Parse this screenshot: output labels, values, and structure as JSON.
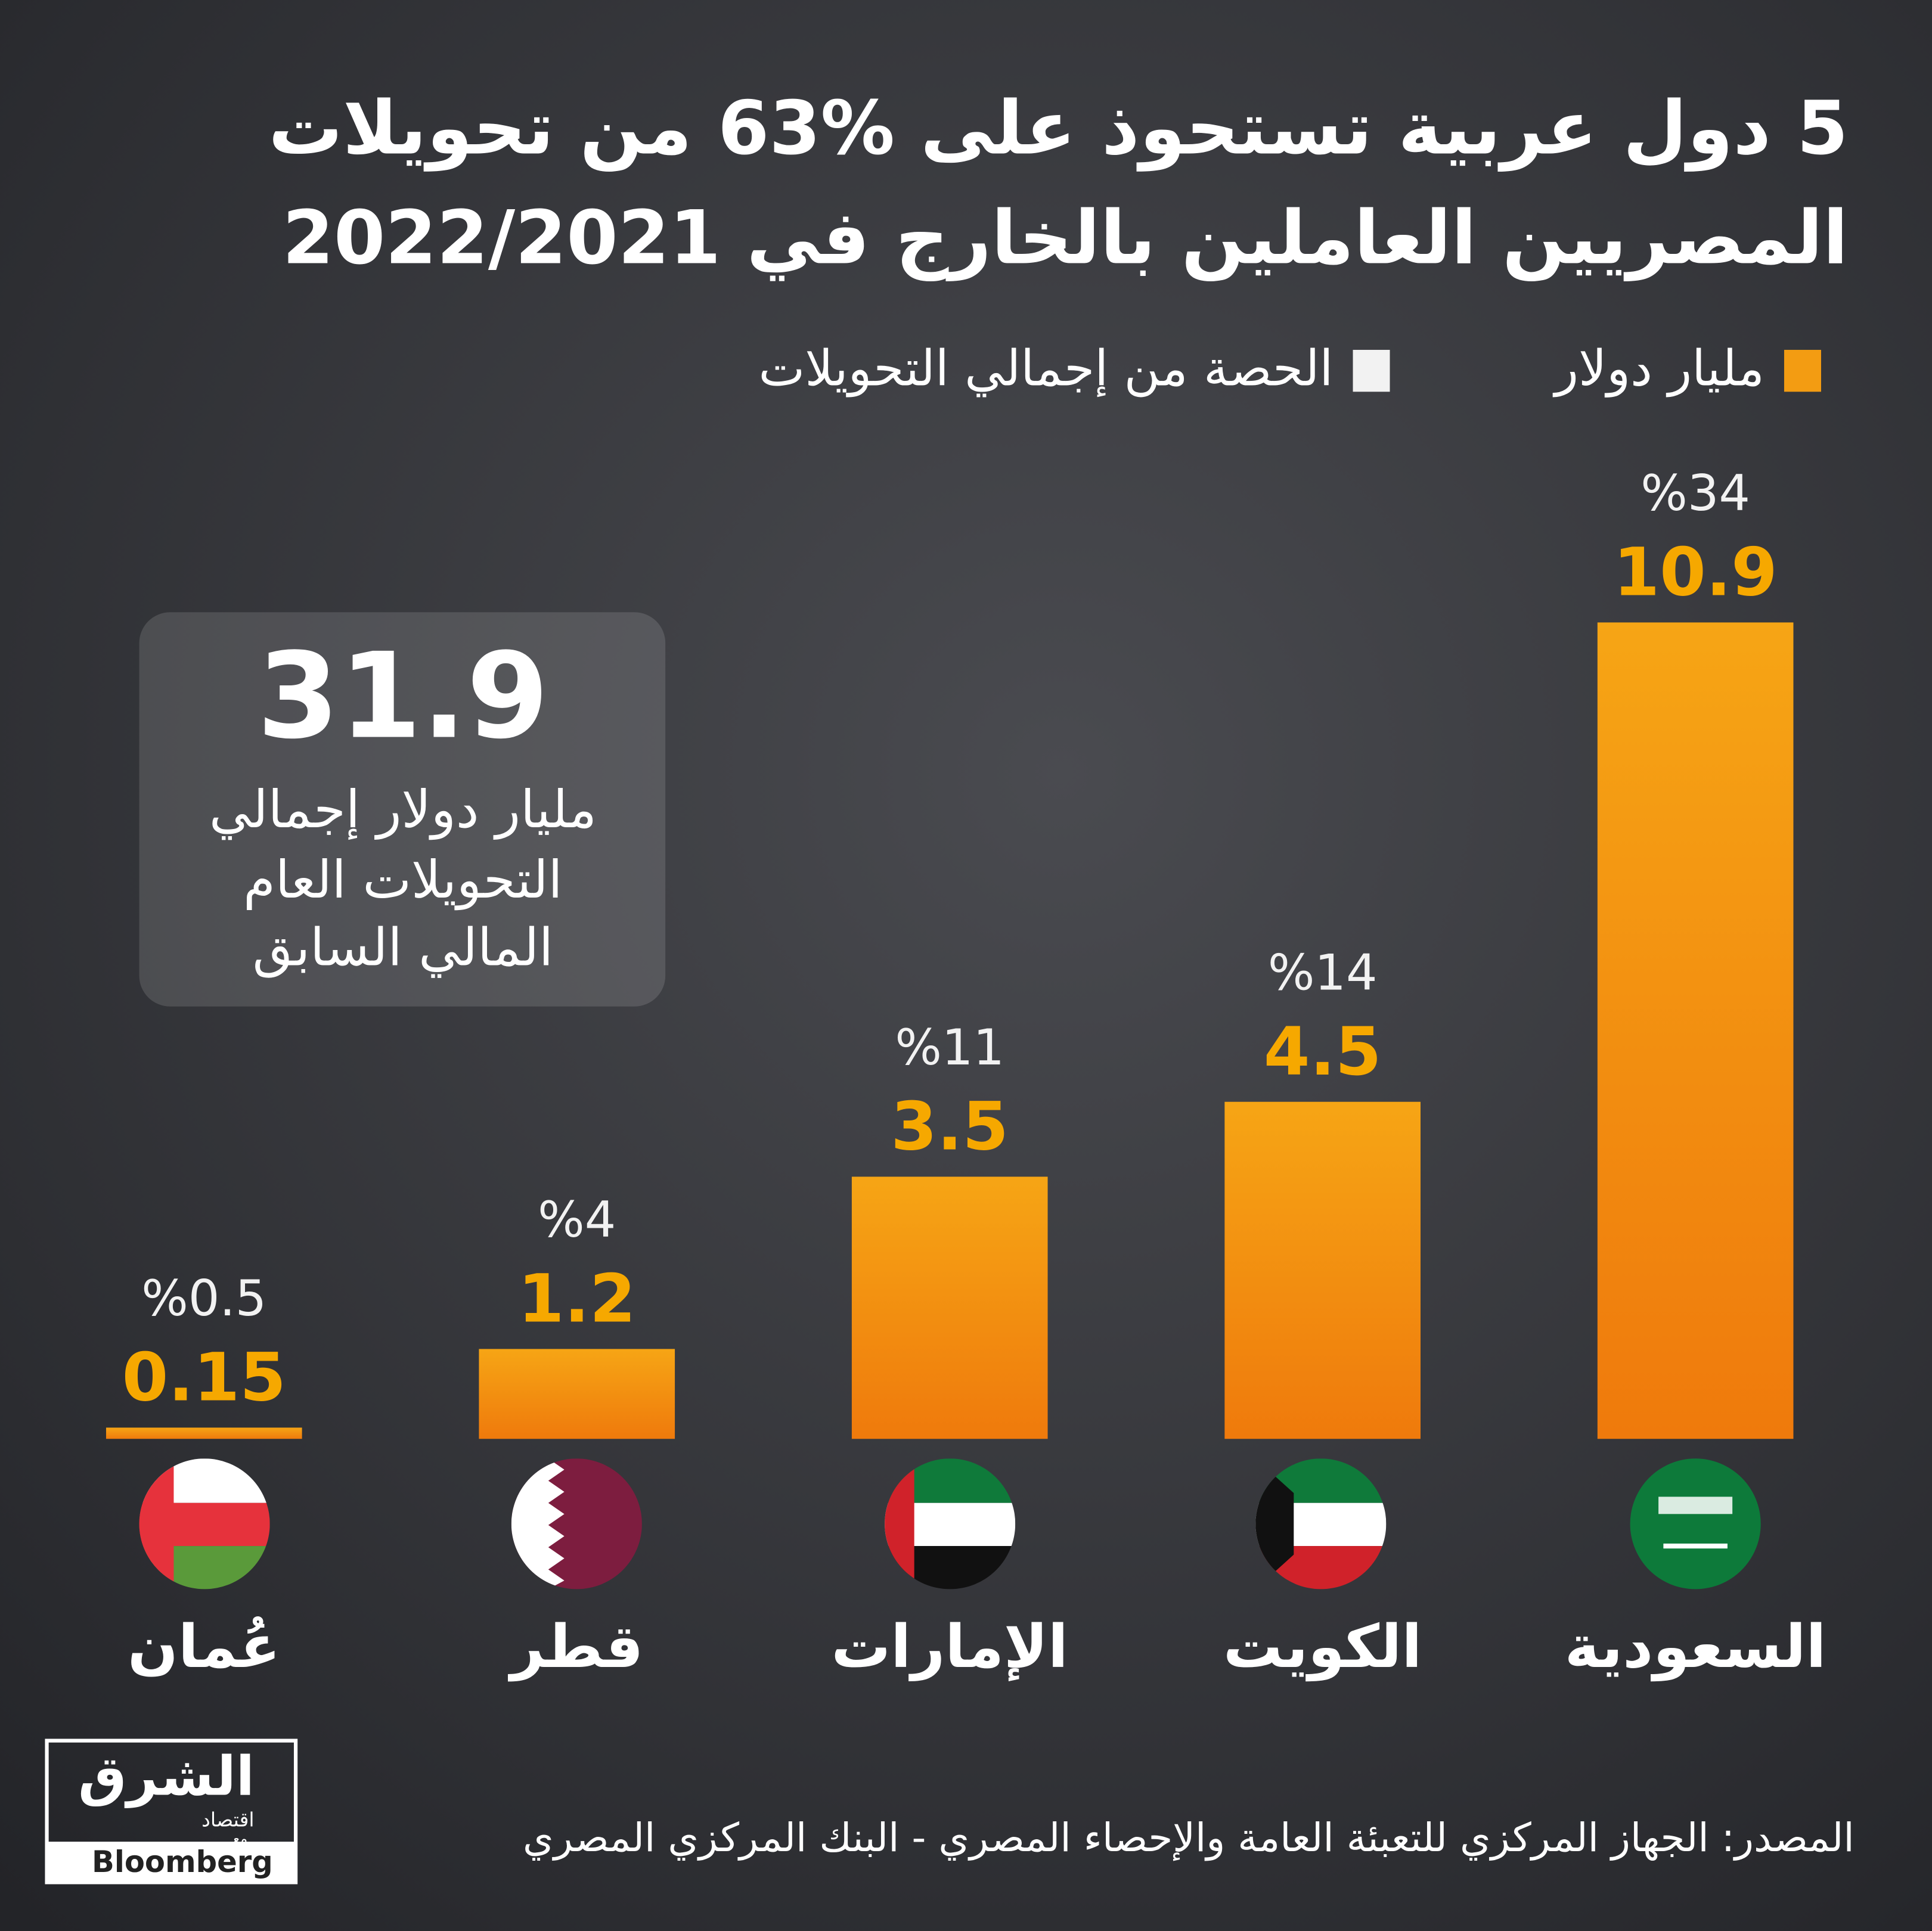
{
  "chart_data": {
    "type": "bar",
    "title": [
      "5 دول عربية تستحوذ على %63 من تحويلات",
      "المصريين العاملين بالخارج في 2022/2021"
    ],
    "categories": [
      "السعودية",
      "الكويت",
      "الإمارات",
      "قطر",
      "عُمان"
    ],
    "series": [
      {
        "name": "مليار دولار",
        "color": "#f39c12",
        "values": [
          10.9,
          4.5,
          3.5,
          1.2,
          0.15
        ]
      },
      {
        "name": "الحصة من إجمالي التحويلات",
        "color": "#f2f2f2",
        "values": [
          34,
          14,
          11,
          4,
          0.5
        ],
        "value_labels": [
          "%34",
          "%14",
          "%11",
          "%4",
          "%0.5"
        ]
      }
    ],
    "annotation": {
      "value": 31.9,
      "text": [
        "مليار دولار إجمالي",
        "التحويلات العام",
        "المالي السابق"
      ]
    },
    "source": "المصدر: الجهاز المركزي للتعبئة العامة والإحصاء المصري - البنك المركزي المصري",
    "logo": {
      "name": "الشرق",
      "sub": "اقتصاد",
      "with": "مع",
      "partner": "Bloomberg"
    }
  }
}
